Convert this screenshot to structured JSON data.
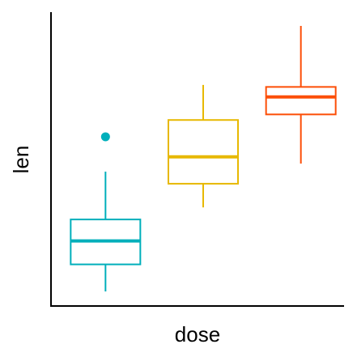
{
  "chart_data": {
    "type": "box",
    "x_label": "dose",
    "y_label": "len",
    "categories": [
      null,
      null,
      null
    ],
    "colors": [
      "#00AFBB",
      "#E7B800",
      "#FC4E07"
    ],
    "boxes": [
      {
        "min": 4.2,
        "q1": 7.225,
        "median": 9.85,
        "q3": 12.25,
        "max": 17.6,
        "outliers": [
          21.5
        ]
      },
      {
        "min": 13.6,
        "q1": 16.25,
        "median": 19.25,
        "q3": 23.375,
        "max": 27.3,
        "outliers": []
      },
      {
        "min": 18.5,
        "q1": 24.0,
        "median": 25.95,
        "q3": 27.075,
        "max": 33.9,
        "outliers": []
      }
    ],
    "ylim": [
      2.57,
      35.44
    ]
  }
}
